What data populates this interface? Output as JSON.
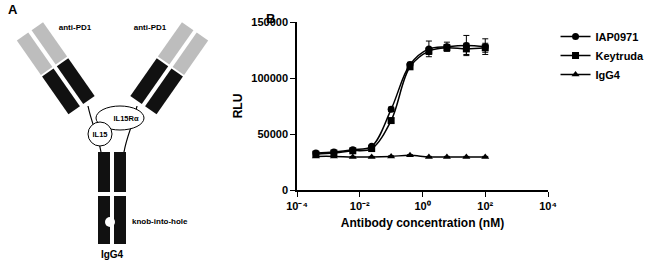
{
  "chart_data": {
    "type": "line",
    "title": "B",
    "x_label": "Antibody concentration (nM)",
    "y_label": "RLU",
    "log": "x",
    "grid": false,
    "legend": "right",
    "xlim": [
      0.0001,
      10000
    ],
    "xticks": [
      {
        "value": 0.0001,
        "label": "10⁻⁴"
      },
      {
        "value": 0.01,
        "label": "10⁻²"
      },
      {
        "value": 1,
        "label": "10⁰"
      },
      {
        "value": 100,
        "label": "10²"
      },
      {
        "value": 10000,
        "label": "10⁴"
      }
    ],
    "ylim": [
      0,
      150000
    ],
    "yticks": [
      0,
      50000,
      100000,
      150000
    ],
    "x": [
      0.0004,
      0.0015,
      0.006,
      0.024,
      0.1,
      0.4,
      1.6,
      6,
      25,
      100
    ],
    "series": [
      {
        "name": "IAP0971",
        "color": "#000000",
        "marker": "circle",
        "values": [
          33000,
          34000,
          36000,
          39000,
          72000,
          112000,
          126000,
          128000,
          129000,
          128000
        ],
        "error": [
          1000,
          1000,
          1000,
          1000,
          2000,
          2000,
          7000,
          4000,
          9000,
          7000
        ]
      },
      {
        "name": "Keytruda",
        "color": "#000000",
        "marker": "square",
        "values": [
          32000,
          33000,
          35000,
          37000,
          62000,
          110000,
          124000,
          127000,
          126000,
          127000
        ],
        "error": [
          1000,
          1000,
          1000,
          1000,
          2000,
          2000,
          3000,
          3000,
          5000,
          4000
        ]
      },
      {
        "name": "IgG4",
        "color": "#000000",
        "marker": "triangle",
        "values": [
          30000,
          30000,
          29500,
          29500,
          30000,
          31000,
          29500,
          29500,
          29500,
          29500
        ],
        "error": [
          500,
          500,
          500,
          500,
          500,
          500,
          500,
          500,
          500,
          500
        ]
      }
    ]
  },
  "diagram": {
    "label": "A",
    "arms": [
      {
        "label": "anti-PD1"
      },
      {
        "label": "anti-PD1"
      }
    ],
    "cytokine": {
      "receptor": "IL15Rα",
      "ligand": "IL15"
    },
    "fc": {
      "label": "IgG4",
      "mutation": "knob-into-hole"
    }
  }
}
